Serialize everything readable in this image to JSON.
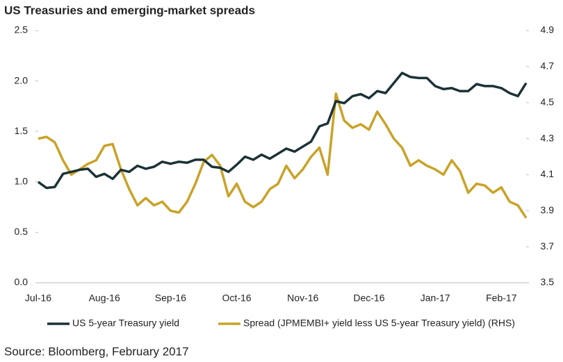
{
  "chart_data": {
    "type": "line",
    "title": "US Treasuries and emerging-market  spreads",
    "source": "Source: Bloomberg, February 2017",
    "categories": [
      "Jul-16",
      null,
      null,
      null,
      null,
      null,
      null,
      null,
      "Aug-16",
      null,
      null,
      null,
      null,
      null,
      null,
      null,
      "Sep-16",
      null,
      null,
      null,
      null,
      null,
      null,
      null,
      "Oct-16",
      null,
      null,
      null,
      null,
      null,
      null,
      null,
      "Nov-16",
      null,
      null,
      null,
      null,
      null,
      null,
      null,
      "Dec-16",
      null,
      null,
      null,
      null,
      null,
      null,
      null,
      "Jan-17",
      null,
      null,
      null,
      null,
      null,
      null,
      null,
      "Feb-17",
      null,
      null,
      null
    ],
    "series": [
      {
        "name": "US 5-year Treasury yield",
        "color": "#1b3236",
        "axis": "y",
        "values": [
          1.0,
          0.94,
          0.95,
          1.08,
          1.1,
          1.12,
          1.13,
          1.05,
          1.08,
          1.03,
          1.12,
          1.1,
          1.16,
          1.13,
          1.15,
          1.2,
          1.18,
          1.2,
          1.19,
          1.22,
          1.22,
          1.15,
          1.14,
          1.1,
          1.17,
          1.25,
          1.22,
          1.27,
          1.23,
          1.28,
          1.33,
          1.3,
          1.35,
          1.4,
          1.55,
          1.58,
          1.8,
          1.78,
          1.85,
          1.87,
          1.83,
          1.9,
          1.88,
          1.98,
          2.08,
          2.04,
          2.03,
          2.03,
          1.95,
          1.92,
          1.93,
          1.9,
          1.9,
          1.97,
          1.95,
          1.95,
          1.93,
          1.88,
          1.85,
          1.98
        ]
      },
      {
        "name": "Spread (JPMEMBI+ yield less US 5-year Treasury yield) (RHS)",
        "color": "#c9a227",
        "axis": "y2",
        "values": [
          4.3,
          4.31,
          4.28,
          4.18,
          4.1,
          4.13,
          4.16,
          4.18,
          4.26,
          4.27,
          4.13,
          4.02,
          3.93,
          3.97,
          3.93,
          3.95,
          3.9,
          3.89,
          3.95,
          4.05,
          4.17,
          4.21,
          4.15,
          3.98,
          4.05,
          3.95,
          3.92,
          3.95,
          4.02,
          4.05,
          4.15,
          4.08,
          4.13,
          4.2,
          4.25,
          4.1,
          4.55,
          4.4,
          4.36,
          4.38,
          4.35,
          4.45,
          4.38,
          4.3,
          4.25,
          4.15,
          4.18,
          4.15,
          4.13,
          4.1,
          4.18,
          4.12,
          4.0,
          4.05,
          4.04,
          4.0,
          4.03,
          3.95,
          3.93,
          3.86
        ]
      }
    ],
    "ylim": [
      0,
      2.5
    ],
    "yticks": [
      {
        "value": 0,
        "label": "0.0"
      },
      0.5,
      {
        "value": 1,
        "label": "1.0"
      },
      1.5,
      {
        "value": 2,
        "label": "2.0"
      },
      2.5
    ],
    "y2lim": [
      3.5,
      4.9
    ],
    "y2ticks": [
      3.5,
      3.7,
      3.9,
      4.1,
      4.3,
      4.5,
      4.7,
      4.9
    ],
    "grid": false
  }
}
